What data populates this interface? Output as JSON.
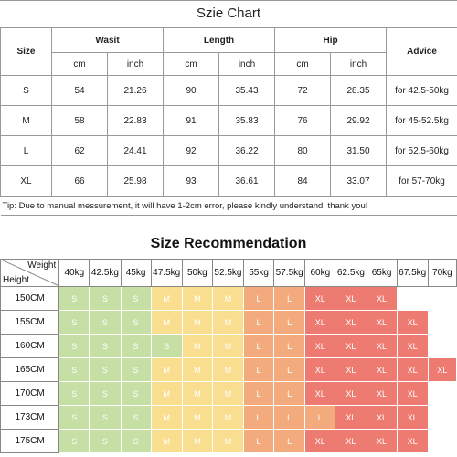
{
  "size_chart": {
    "title": "Szie Chart",
    "col_size": "Size",
    "col_waist": "Wasit",
    "col_length": "Length",
    "col_hip": "Hip",
    "col_advice": "Advice",
    "unit_cm": "cm",
    "unit_inch": "inch",
    "rows": [
      {
        "size": "S",
        "waist_cm": "54",
        "waist_inch": "21.26",
        "length_cm": "90",
        "length_inch": "35.43",
        "hip_cm": "72",
        "hip_inch": "28.35",
        "advice": "for 42.5-50kg"
      },
      {
        "size": "M",
        "waist_cm": "58",
        "waist_inch": "22.83",
        "length_cm": "91",
        "length_inch": "35.83",
        "hip_cm": "76",
        "hip_inch": "29.92",
        "advice": "for 45-52.5kg"
      },
      {
        "size": "L",
        "waist_cm": "62",
        "waist_inch": "24.41",
        "length_cm": "92",
        "length_inch": "36.22",
        "hip_cm": "80",
        "hip_inch": "31.50",
        "advice": "for 52.5-60kg"
      },
      {
        "size": "XL",
        "waist_cm": "66",
        "waist_inch": "25.98",
        "length_cm": "93",
        "length_inch": "36.61",
        "hip_cm": "84",
        "hip_inch": "33.07",
        "advice": "for 57-70kg"
      }
    ],
    "tip": "Tip: Due to manual messurement, it will have 1-2cm error, please kindly understand, thank you!"
  },
  "recommendation": {
    "title": "Size Recommendation",
    "corner_weight": "Weight",
    "corner_height": "Height",
    "weights": [
      "40kg",
      "42.5kg",
      "45kg",
      "47.5kg",
      "50kg",
      "52.5kg",
      "55kg",
      "57.5kg",
      "60kg",
      "62.5kg",
      "65kg",
      "67.5kg",
      "70kg"
    ],
    "heights": [
      "150CM",
      "155CM",
      "160CM",
      "165CM",
      "170CM",
      "173CM",
      "175CM"
    ],
    "grid": [
      [
        "S",
        "S",
        "S",
        "M",
        "M",
        "M",
        "L",
        "L",
        "XL",
        "XL",
        "XL",
        "",
        ""
      ],
      [
        "S",
        "S",
        "S",
        "M",
        "M",
        "M",
        "L",
        "L",
        "XL",
        "XL",
        "XL",
        "XL",
        ""
      ],
      [
        "S",
        "S",
        "S",
        "S",
        "M",
        "M",
        "L",
        "L",
        "XL",
        "XL",
        "XL",
        "XL",
        ""
      ],
      [
        "S",
        "S",
        "S",
        "M",
        "M",
        "M",
        "L",
        "L",
        "XL",
        "XL",
        "XL",
        "XL",
        "XL"
      ],
      [
        "S",
        "S",
        "S",
        "M",
        "M",
        "M",
        "L",
        "L",
        "XL",
        "XL",
        "XL",
        "XL",
        ""
      ],
      [
        "S",
        "S",
        "S",
        "M",
        "M",
        "M",
        "L",
        "L",
        "L",
        "XL",
        "XL",
        "XL",
        ""
      ],
      [
        "S",
        "S",
        "S",
        "M",
        "M",
        "M",
        "L",
        "L",
        "XL",
        "XL",
        "XL",
        "XL",
        ""
      ]
    ],
    "colors": {
      "S": "#c5dfa4",
      "M": "#f8de8e",
      "L": "#f3ab7e",
      "XL": "#ee7b72"
    }
  }
}
